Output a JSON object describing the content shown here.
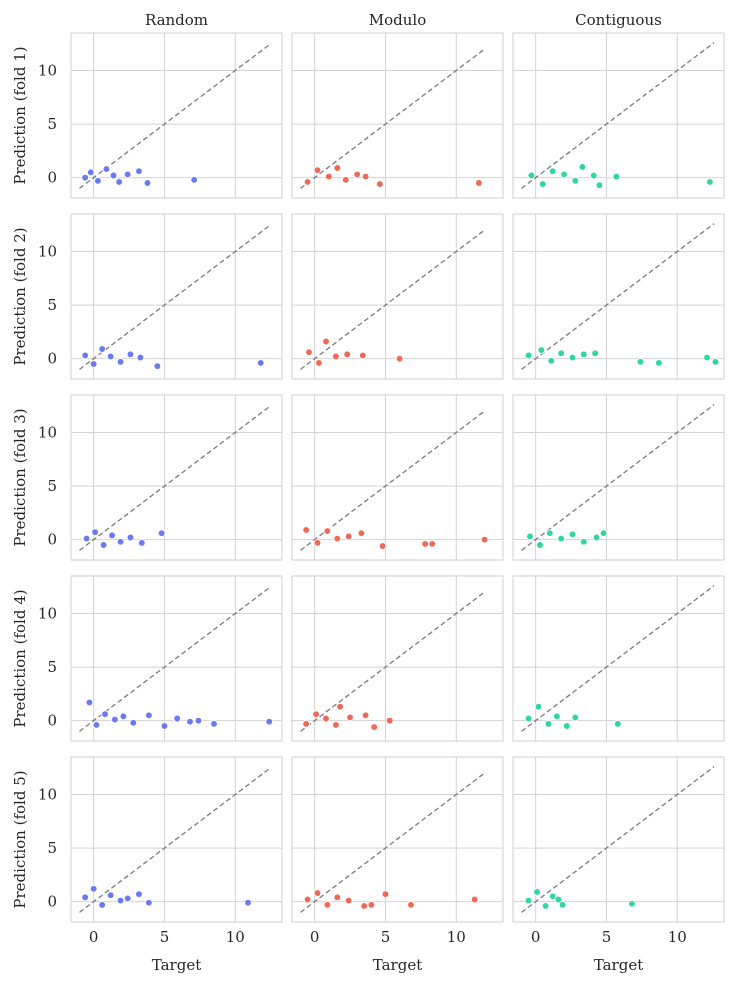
{
  "chart_data": {
    "type": "scatter",
    "layout": "5x3 facet grid",
    "columns": [
      "Random",
      "Modulo",
      "Contiguous"
    ],
    "rows": [
      "Prediction (fold 1)",
      "Prediction (fold 2)",
      "Prediction (fold 3)",
      "Prediction (fold 4)",
      "Prediction (fold 5)"
    ],
    "xlabel": "Target",
    "xlim": [
      -1.6,
      13.3
    ],
    "ylim": [
      -1.9,
      13.5
    ],
    "xticks": [
      0,
      5,
      10
    ],
    "yticks": [
      0,
      5,
      10
    ],
    "grid": true,
    "reference_line": {
      "style": "dashed",
      "color": "#7a7a7a",
      "from": [
        -1,
        -1
      ],
      "to_x": [
        12.4,
        12.0,
        12.6
      ]
    },
    "colors": {
      "Random": "#6b79f2",
      "Modulo": "#ee6a56",
      "Contiguous": "#2fd7a0"
    },
    "panels": [
      [
        {
          "points": [
            [
              -0.6,
              0.0
            ],
            [
              -0.2,
              0.5
            ],
            [
              0.3,
              -0.3
            ],
            [
              0.9,
              0.8
            ],
            [
              1.4,
              0.2
            ],
            [
              1.8,
              -0.4
            ],
            [
              2.4,
              0.3
            ],
            [
              3.2,
              0.6
            ],
            [
              3.8,
              -0.5
            ],
            [
              7.1,
              -0.2
            ]
          ]
        },
        {
          "points": [
            [
              -0.5,
              -0.4
            ],
            [
              0.2,
              0.7
            ],
            [
              1.0,
              0.1
            ],
            [
              1.6,
              0.9
            ],
            [
              2.2,
              -0.2
            ],
            [
              3.0,
              0.3
            ],
            [
              3.6,
              0.1
            ],
            [
              4.6,
              -0.6
            ],
            [
              11.6,
              -0.5
            ]
          ]
        },
        {
          "points": [
            [
              -0.3,
              0.2
            ],
            [
              0.5,
              -0.6
            ],
            [
              1.2,
              0.6
            ],
            [
              2.0,
              0.3
            ],
            [
              2.8,
              -0.3
            ],
            [
              3.3,
              1.0
            ],
            [
              4.1,
              0.2
            ],
            [
              4.5,
              -0.7
            ],
            [
              5.7,
              0.1
            ],
            [
              12.3,
              -0.4
            ]
          ]
        }
      ],
      [
        {
          "points": [
            [
              -0.6,
              0.3
            ],
            [
              0.0,
              -0.5
            ],
            [
              0.6,
              0.9
            ],
            [
              1.2,
              0.2
            ],
            [
              1.9,
              -0.3
            ],
            [
              2.6,
              0.4
            ],
            [
              3.3,
              0.1
            ],
            [
              4.5,
              -0.7
            ],
            [
              11.8,
              -0.4
            ]
          ]
        },
        {
          "points": [
            [
              -0.4,
              0.6
            ],
            [
              0.3,
              -0.4
            ],
            [
              0.8,
              1.6
            ],
            [
              1.5,
              0.2
            ],
            [
              2.3,
              0.4
            ],
            [
              3.4,
              0.3
            ],
            [
              6.0,
              0.0
            ]
          ]
        },
        {
          "points": [
            [
              -0.5,
              0.3
            ],
            [
              0.4,
              0.8
            ],
            [
              1.1,
              -0.2
            ],
            [
              1.8,
              0.5
            ],
            [
              2.6,
              0.1
            ],
            [
              3.4,
              0.4
            ],
            [
              4.2,
              0.5
            ],
            [
              7.4,
              -0.3
            ],
            [
              8.7,
              -0.4
            ],
            [
              12.1,
              0.1
            ],
            [
              12.7,
              -0.3
            ]
          ]
        }
      ],
      [
        {
          "points": [
            [
              -0.5,
              0.1
            ],
            [
              0.1,
              0.7
            ],
            [
              0.7,
              -0.5
            ],
            [
              1.3,
              0.4
            ],
            [
              1.9,
              -0.2
            ],
            [
              2.6,
              0.2
            ],
            [
              3.4,
              -0.3
            ],
            [
              4.8,
              0.6
            ]
          ]
        },
        {
          "points": [
            [
              -0.6,
              0.9
            ],
            [
              0.2,
              -0.3
            ],
            [
              0.9,
              0.8
            ],
            [
              1.6,
              0.1
            ],
            [
              2.4,
              0.3
            ],
            [
              3.3,
              0.6
            ],
            [
              4.8,
              -0.6
            ],
            [
              7.8,
              -0.4
            ],
            [
              8.3,
              -0.4
            ],
            [
              12.0,
              0.0
            ]
          ]
        },
        {
          "points": [
            [
              -0.4,
              0.3
            ],
            [
              0.3,
              -0.5
            ],
            [
              1.0,
              0.6
            ],
            [
              1.8,
              0.1
            ],
            [
              2.6,
              0.5
            ],
            [
              3.4,
              -0.2
            ],
            [
              4.3,
              0.2
            ],
            [
              4.8,
              0.6
            ]
          ]
        }
      ],
      [
        {
          "points": [
            [
              -0.3,
              1.7
            ],
            [
              0.2,
              -0.4
            ],
            [
              0.8,
              0.6
            ],
            [
              1.5,
              0.1
            ],
            [
              2.1,
              0.4
            ],
            [
              2.8,
              -0.2
            ],
            [
              3.9,
              0.5
            ],
            [
              5.0,
              -0.5
            ],
            [
              5.9,
              0.2
            ],
            [
              6.8,
              -0.1
            ],
            [
              7.4,
              0.0
            ],
            [
              8.5,
              -0.3
            ],
            [
              12.4,
              -0.1
            ]
          ]
        },
        {
          "points": [
            [
              -0.6,
              -0.3
            ],
            [
              0.1,
              0.6
            ],
            [
              0.8,
              0.2
            ],
            [
              1.5,
              -0.4
            ],
            [
              1.8,
              1.3
            ],
            [
              2.5,
              0.3
            ],
            [
              3.6,
              0.5
            ],
            [
              4.2,
              -0.6
            ],
            [
              5.3,
              0.0
            ]
          ]
        },
        {
          "points": [
            [
              -0.5,
              0.2
            ],
            [
              0.2,
              1.3
            ],
            [
              0.9,
              -0.3
            ],
            [
              1.5,
              0.4
            ],
            [
              2.2,
              -0.5
            ],
            [
              2.8,
              0.3
            ],
            [
              5.8,
              -0.3
            ]
          ]
        }
      ],
      [
        {
          "points": [
            [
              -0.6,
              0.4
            ],
            [
              0.0,
              1.2
            ],
            [
              0.6,
              -0.3
            ],
            [
              1.2,
              0.6
            ],
            [
              1.9,
              0.1
            ],
            [
              2.4,
              0.3
            ],
            [
              3.2,
              0.7
            ],
            [
              3.9,
              -0.1
            ],
            [
              10.9,
              -0.1
            ]
          ]
        },
        {
          "points": [
            [
              -0.5,
              0.2
            ],
            [
              0.2,
              0.8
            ],
            [
              0.9,
              -0.3
            ],
            [
              1.6,
              0.4
            ],
            [
              2.4,
              0.1
            ],
            [
              3.5,
              -0.4
            ],
            [
              4.0,
              -0.3
            ],
            [
              5.0,
              0.7
            ],
            [
              6.8,
              -0.3
            ],
            [
              11.3,
              0.2
            ]
          ]
        },
        {
          "points": [
            [
              -0.5,
              0.1
            ],
            [
              0.1,
              0.9
            ],
            [
              0.7,
              -0.4
            ],
            [
              1.2,
              0.5
            ],
            [
              1.6,
              0.2
            ],
            [
              1.9,
              -0.3
            ],
            [
              6.8,
              -0.2
            ]
          ]
        }
      ]
    ]
  }
}
